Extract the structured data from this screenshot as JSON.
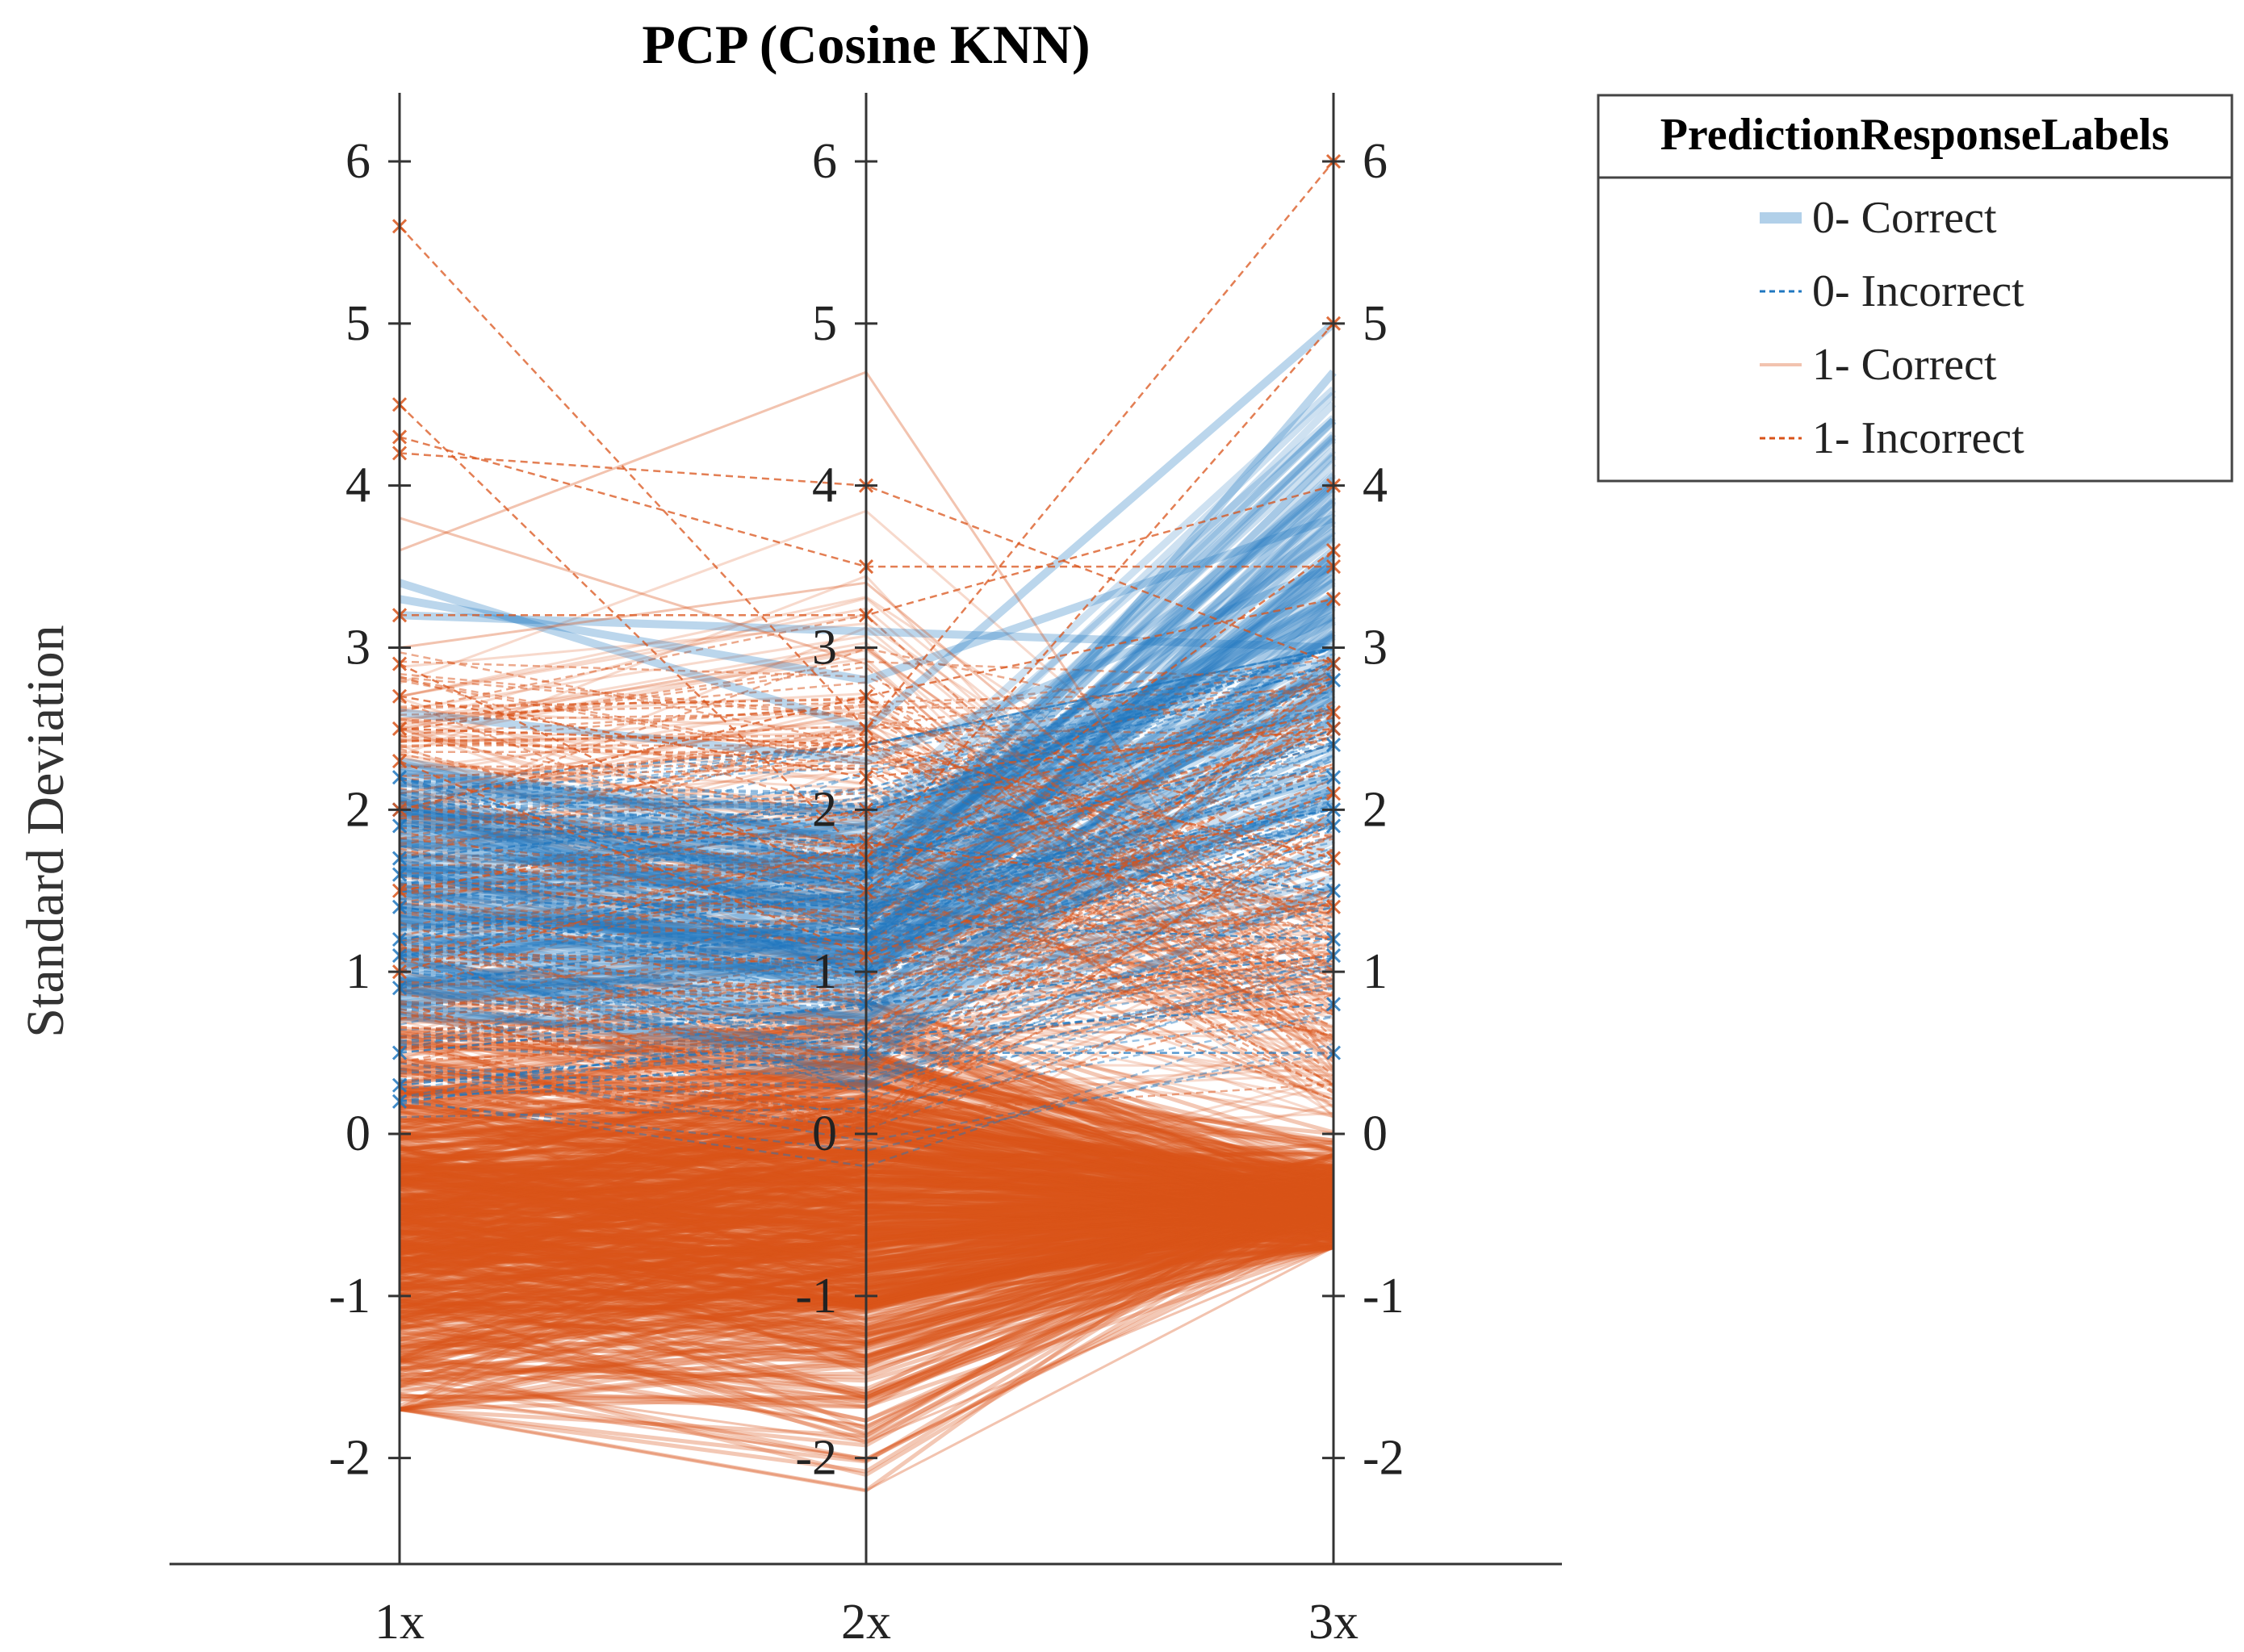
{
  "chart_data": {
    "type": "parallel-coordinates",
    "title": "PCP (Cosine KNN)",
    "ylabel": "Standard Deviation",
    "categories": [
      "1x",
      "2x",
      "3x"
    ],
    "ylim": [
      -2.65,
      6.45
    ],
    "yticks": [
      "-2",
      "-1",
      "0",
      "1",
      "2",
      "3",
      "4",
      "5",
      "6"
    ],
    "grid": false,
    "legend": {
      "title": "PredictionResponseLabels",
      "placement": "top-right outside",
      "entries": [
        "0- Correct",
        "0- Incorrect",
        "1- Correct",
        "1- Incorrect"
      ]
    },
    "colors": {
      "blue": "#1f77c0",
      "orange": "#d95319"
    },
    "series": [
      {
        "name": "0- Correct",
        "style": "solid-thick",
        "color": "#1f77c0",
        "values": [
          [
            3.4,
            2.5,
            5.0
          ],
          [
            3.3,
            2.8,
            3.8
          ],
          [
            3.2,
            3.1,
            3.0
          ],
          [
            2.3,
            1.8,
            3.2
          ],
          [
            1.9,
            1.6,
            4.4
          ],
          [
            1.4,
            1.2,
            3.6
          ],
          [
            2.1,
            2.0,
            2.6
          ],
          [
            1.7,
            1.7,
            3.4
          ],
          [
            0.9,
            1.0,
            2.9
          ],
          [
            1.1,
            1.3,
            4.7
          ],
          [
            2.6,
            2.3,
            3.5
          ],
          [
            1.8,
            1.4,
            2.2
          ],
          [
            0.8,
            1.1,
            2.4
          ],
          [
            1.6,
            1.9,
            3.3
          ],
          [
            2.0,
            1.5,
            4.0
          ],
          [
            1.3,
            0.9,
            2.1
          ]
        ]
      },
      {
        "name": "0- Incorrect",
        "style": "dashed-thin",
        "color": "#1f77c0",
        "values": [
          [
            2.2,
            1.4,
            2.2
          ],
          [
            1.6,
            1.2,
            2.5
          ],
          [
            1.9,
            1.8,
            1.5
          ],
          [
            0.5,
            0.8,
            1.1
          ],
          [
            1.2,
            1.6,
            2.8
          ],
          [
            0.3,
            0.6,
            0.8
          ],
          [
            1.4,
            1.0,
            1.9
          ],
          [
            2.0,
            1.7,
            2.4
          ],
          [
            0.9,
            1.3,
            1.2
          ],
          [
            1.7,
            2.0,
            2.9
          ],
          [
            0.2,
            0.5,
            0.5
          ],
          [
            1.1,
            1.5,
            2.0
          ]
        ]
      },
      {
        "name": "1- Correct",
        "style": "solid-thin",
        "color": "#d95319",
        "values": [
          [
            3.8,
            2.9,
            0.5
          ],
          [
            3.6,
            4.7,
            0.4
          ],
          [
            3.0,
            3.4,
            1.0
          ],
          [
            -1.7,
            -2.2,
            -0.7
          ],
          [
            -1.6,
            -2.0,
            -0.6
          ],
          [
            -1.5,
            -1.9,
            -0.7
          ],
          [
            2.5,
            3.0,
            0.9
          ],
          [
            2.1,
            2.6,
            1.6
          ],
          [
            -1.4,
            -1.8,
            -0.5
          ],
          [
            -1.2,
            -1.6,
            -0.6
          ]
        ]
      },
      {
        "name": "1- Incorrect",
        "style": "dashed-thin",
        "color": "#d95319",
        "values": [
          [
            5.6,
            2.5,
            6.0
          ],
          [
            4.5,
            1.7,
            5.0
          ],
          [
            4.3,
            3.5,
            3.5
          ],
          [
            4.2,
            4.0,
            2.9
          ],
          [
            3.2,
            3.2,
            4.0
          ],
          [
            2.9,
            1.5,
            3.6
          ],
          [
            2.7,
            2.2,
            2.5
          ],
          [
            2.0,
            2.7,
            3.3
          ],
          [
            2.5,
            2.4,
            1.7
          ],
          [
            1.5,
            2.0,
            2.6
          ],
          [
            2.3,
            1.1,
            2.1
          ],
          [
            1.0,
            1.8,
            1.4
          ]
        ]
      }
    ]
  }
}
